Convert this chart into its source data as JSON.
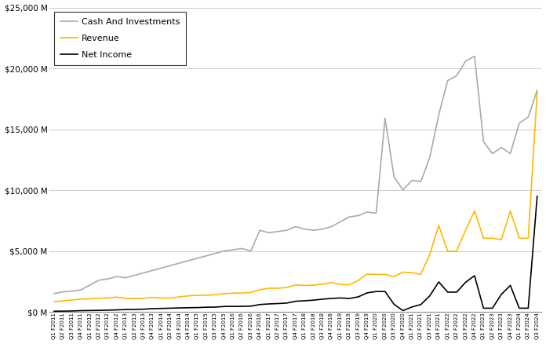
{
  "ylim": [
    0,
    25000
  ],
  "yticks": [
    0,
    5000,
    10000,
    15000,
    20000,
    25000
  ],
  "ytick_labels": [
    "$0 M",
    "$5,000 M",
    "$10,000 M",
    "$15,000 M",
    "$20,000 M",
    "$25,000 M"
  ],
  "revenue_color": "#FFB800",
  "net_income_color": "#000000",
  "cash_color": "#AAAAAA",
  "legend_labels": [
    "Revenue",
    "Net Income",
    "Cash And Investments"
  ],
  "quarters": [
    "Q1 F2011",
    "Q2 F2011",
    "Q3 F2011",
    "Q4 F2011",
    "Q1 F2012",
    "Q2 F2012",
    "Q3 F2012",
    "Q4 F2012",
    "Q1 F2013",
    "Q2 F2013",
    "Q3 F2013",
    "Q4 F2013",
    "Q1 F2014",
    "Q2 F2014",
    "Q3 F2014",
    "Q4 F2014",
    "Q1 F2015",
    "Q2 F2015",
    "Q3 F2015",
    "Q4 F2015",
    "Q1 F2016",
    "Q2 F2016",
    "Q3 F2016",
    "Q4 F2016",
    "Q1 F2017",
    "Q2 F2017",
    "Q3 F2017",
    "Q4 F2017",
    "Q1 F2018",
    "Q2 F2018",
    "Q3 F2018",
    "Q4 F2018",
    "Q1 F2019",
    "Q2 F2019",
    "Q3 F2019",
    "Q4 F2019",
    "Q1 F2020",
    "Q2 F2020",
    "Q3 F2020",
    "Q4 F2020",
    "Q1 F2021",
    "Q2 F2021",
    "Q3 F2021",
    "Q4 F2021",
    "Q1 F2022",
    "Q2 F2022",
    "Q3 F2022",
    "Q4 F2022",
    "Q1 F2023",
    "Q2 F2023",
    "Q3 F2023",
    "Q4 F2023",
    "Q1 F2024",
    "Q2 F2024",
    "Q3 F2024"
  ],
  "revenue": [
    843,
    900,
    975,
    1050,
    1070,
    1110,
    1140,
    1210,
    1100,
    1100,
    1110,
    1190,
    1120,
    1130,
    1230,
    1310,
    1360,
    1370,
    1400,
    1490,
    1540,
    1550,
    1590,
    1820,
    1940,
    1940,
    2000,
    2200,
    2170,
    2190,
    2270,
    2400,
    2260,
    2220,
    2580,
    3110,
    3080,
    3080,
    2890,
    3260,
    3210,
    3080,
    4730,
    7103,
    4960,
    5000,
    6700,
    8290,
    6050,
    6050,
    5930,
    8290,
    6050,
    6050,
    18000
  ],
  "net_income": [
    50,
    60,
    70,
    100,
    110,
    120,
    140,
    160,
    190,
    200,
    220,
    260,
    280,
    300,
    320,
    340,
    350,
    380,
    390,
    440,
    450,
    450,
    470,
    600,
    650,
    680,
    720,
    870,
    910,
    960,
    1040,
    1100,
    1140,
    1100,
    1230,
    1560,
    1670,
    1670,
    620,
    100,
    400,
    600,
    1320,
    2460,
    1620,
    1618,
    2430,
    2970,
    300,
    300,
    1440,
    2170,
    300,
    300,
    9500
  ],
  "cash": [
    1500,
    1650,
    1700,
    1800,
    2200,
    2600,
    2700,
    2900,
    2800,
    3000,
    3200,
    3400,
    3600,
    3800,
    4000,
    4200,
    4400,
    4600,
    4800,
    5000,
    5100,
    5200,
    5000,
    6700,
    6500,
    6600,
    6700,
    7000,
    6800,
    6700,
    6800,
    7000,
    7400,
    7800,
    7900,
    8200,
    8100,
    15900,
    11100,
    10000,
    10800,
    10700,
    12700,
    16200,
    19000,
    19400,
    20600,
    21000,
    14000,
    13000,
    13500,
    13000,
    15500,
    16000,
    18200
  ],
  "figsize": [
    6.96,
    4.38
  ],
  "dpi": 100
}
